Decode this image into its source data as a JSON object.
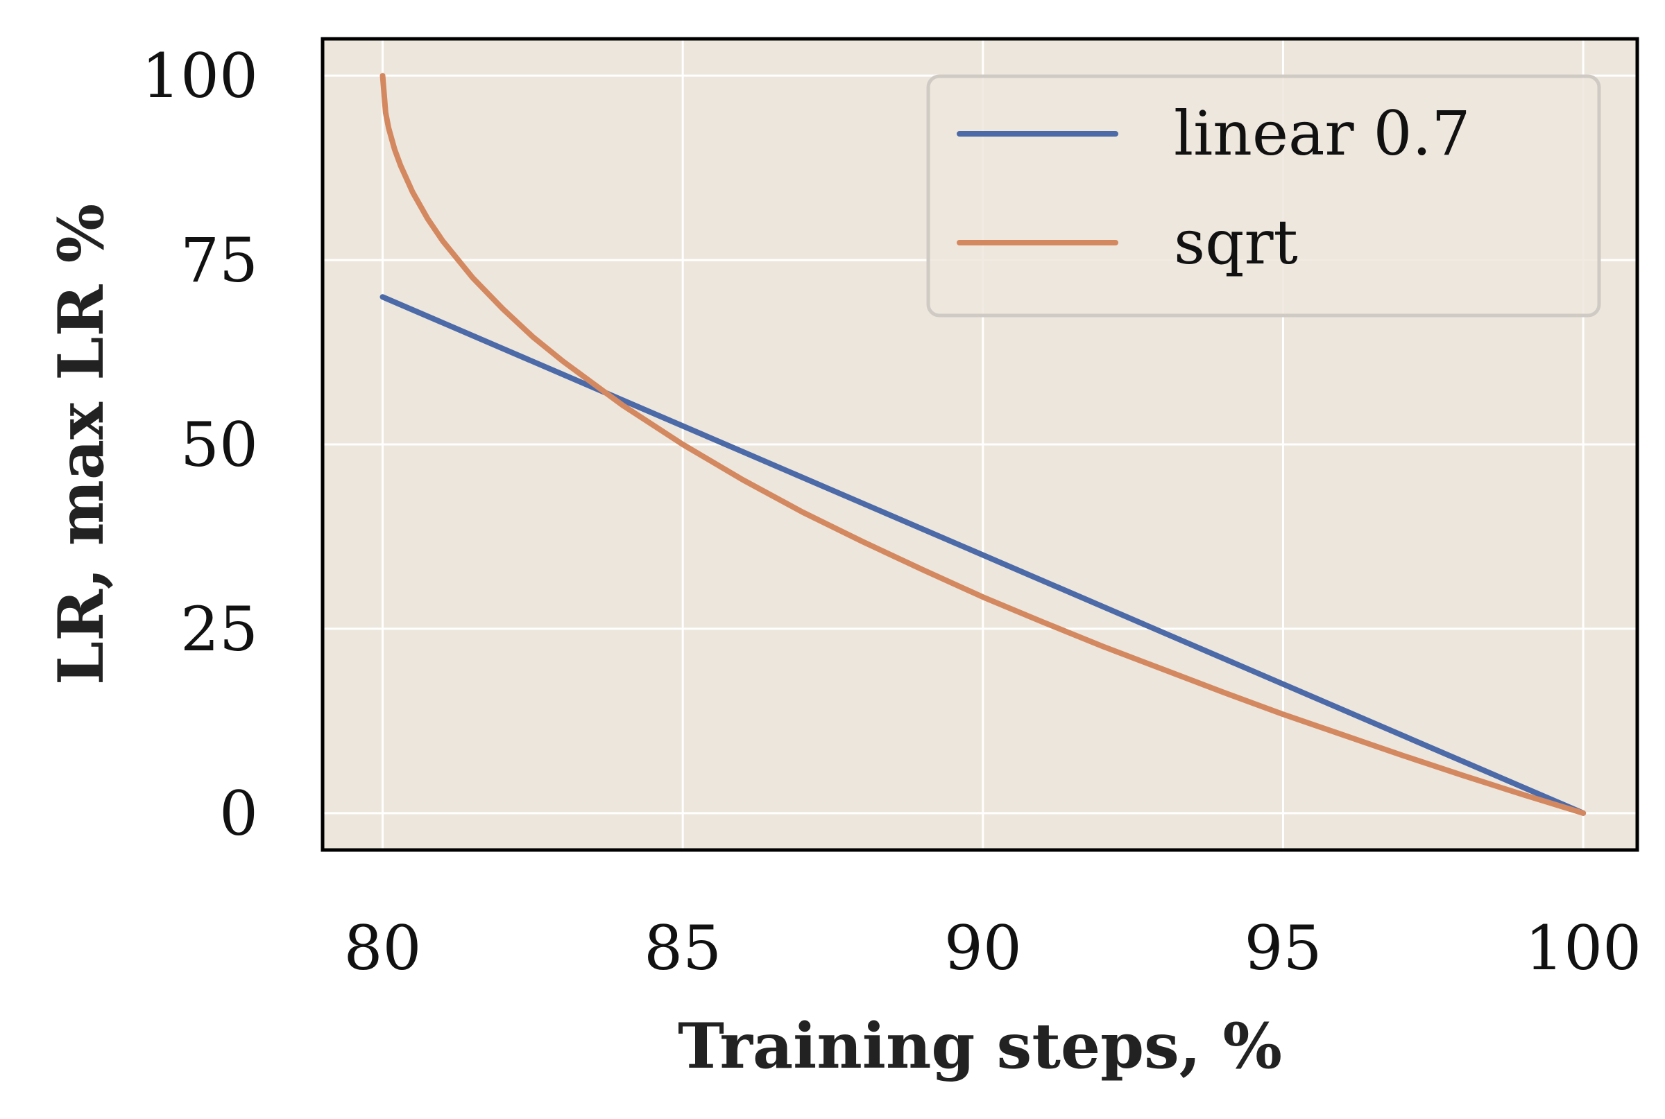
{
  "colors": {
    "plot_background": "#ede6dd",
    "grid": "#ffffff",
    "frame": "#000000",
    "linear": "#4c6aa8",
    "sqrt": "#d4885f"
  },
  "chart_data": {
    "type": "line",
    "title": "",
    "xlabel": "Training steps, %",
    "ylabel": "LR, max LR %",
    "xlim": [
      79,
      100.9
    ],
    "ylim": [
      -5,
      105
    ],
    "xticks": [
      80,
      85,
      90,
      95,
      100
    ],
    "xtick_labels": [
      "80",
      "85",
      "90",
      "95",
      "100"
    ],
    "yticks": [
      0,
      25,
      50,
      75,
      100
    ],
    "ytick_labels": [
      "0",
      "25",
      "50",
      "75",
      "100"
    ],
    "grid": true,
    "legend_position": "top-right",
    "series": [
      {
        "name": "linear 0.7",
        "color_key": "linear",
        "x": [
          80,
          100
        ],
        "y": [
          70,
          0
        ]
      },
      {
        "name": "sqrt",
        "color_key": "sqrt",
        "x": [
          80,
          80.05,
          80.1,
          80.2,
          80.3,
          80.5,
          80.75,
          81,
          81.5,
          82,
          82.5,
          83,
          84,
          85,
          86,
          87,
          88,
          89,
          90,
          91,
          92,
          93,
          94,
          95,
          96,
          97,
          98,
          99,
          100
        ],
        "y": [
          100,
          95,
          92.9,
          90,
          87.8,
          84.2,
          80.6,
          77.6,
          72.6,
          68.4,
          64.6,
          61.3,
          55.3,
          50,
          45.2,
          40.8,
          36.8,
          33,
          29.3,
          25.9,
          22.6,
          19.5,
          16.4,
          13.4,
          10.6,
          7.8,
          5.1,
          2.5,
          0
        ]
      }
    ]
  }
}
